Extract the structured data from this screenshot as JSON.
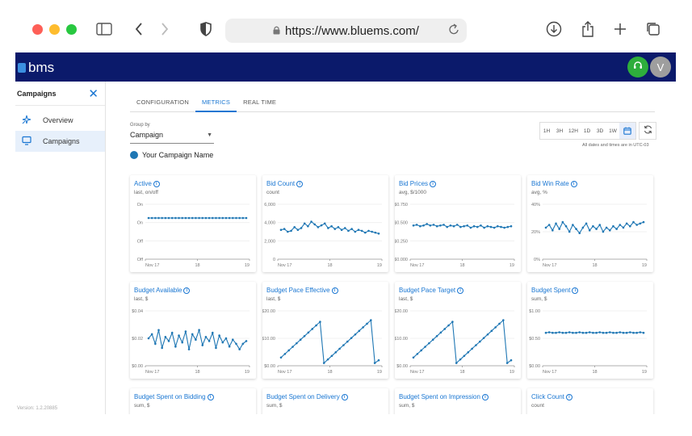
{
  "browser": {
    "url": "https://www.bluems.com/"
  },
  "app": {
    "logo_text": "bms",
    "avatar_initial": "V",
    "colors": {
      "header": "#0b1a6b",
      "accent": "#1976d2",
      "series": "#1f77b4",
      "help": "#2eae3c"
    }
  },
  "sidebar": {
    "title": "Campaigns",
    "items": [
      {
        "label": "Overview",
        "icon": "sparkle-icon"
      },
      {
        "label": "Campaigns",
        "icon": "monitor-icon",
        "active": true
      }
    ],
    "version": "Version: 1.2.20885"
  },
  "tabs": [
    {
      "label": "CONFIGURATION"
    },
    {
      "label": "METRICS",
      "active": true
    },
    {
      "label": "REAL TIME"
    }
  ],
  "groupby": {
    "label": "Group by",
    "value": "Campaign"
  },
  "legend": {
    "label": "Your Campaign Name"
  },
  "ranges": [
    "1H",
    "3H",
    "12H",
    "1D",
    "3D",
    "1W"
  ],
  "timezone_note": "All dates and times are in UTC-03",
  "chart_data": [
    {
      "id": "active",
      "title": "Active",
      "subtitle": "last, on/off",
      "type": "line",
      "x_ticks": [
        "Nov 17",
        "18",
        "19"
      ],
      "y_ticks": [
        "On",
        "On",
        "Off",
        "Off"
      ],
      "series": [
        {
          "values": [
            1,
            1,
            1,
            1,
            1,
            1,
            1,
            1,
            1,
            1,
            1,
            1,
            1,
            1,
            1,
            1,
            1,
            1,
            1,
            1,
            1,
            1,
            1,
            1,
            1,
            1,
            1,
            1,
            1,
            1
          ]
        }
      ],
      "ylim": [
        -0.5,
        1.5
      ]
    },
    {
      "id": "bid_count",
      "title": "Bid Count",
      "subtitle": "count",
      "type": "line",
      "x_ticks": [
        "Nov 17",
        "18",
        "19"
      ],
      "y_ticks": [
        "6,000",
        "4,000",
        "2,000",
        "0"
      ],
      "series": [
        {
          "values": [
            3200,
            3300,
            3000,
            3100,
            3500,
            3200,
            3400,
            3900,
            3600,
            4100,
            3800,
            3500,
            3700,
            3900,
            3400,
            3600,
            3300,
            3500,
            3200,
            3400,
            3100,
            3300,
            3000,
            3200,
            3100,
            2900,
            3100,
            3000,
            2900,
            2800
          ]
        }
      ],
      "ylim": [
        0,
        6000
      ]
    },
    {
      "id": "bid_prices",
      "title": "Bid Prices",
      "subtitle": "avg, $/1000",
      "type": "line",
      "x_ticks": [
        "Nov 17",
        "18",
        "19"
      ],
      "y_ticks": [
        "$0.750",
        "$0.500",
        "$0.250",
        "$0.000"
      ],
      "series": [
        {
          "values": [
            0.46,
            0.47,
            0.45,
            0.46,
            0.48,
            0.46,
            0.47,
            0.45,
            0.46,
            0.47,
            0.44,
            0.46,
            0.45,
            0.47,
            0.44,
            0.45,
            0.46,
            0.43,
            0.45,
            0.44,
            0.46,
            0.43,
            0.45,
            0.44,
            0.43,
            0.45,
            0.44,
            0.43,
            0.44,
            0.45
          ]
        }
      ],
      "ylim": [
        0,
        0.75
      ]
    },
    {
      "id": "bid_win_rate",
      "title": "Bid Win Rate",
      "subtitle": "avg, %",
      "type": "line",
      "x_ticks": [
        "Nov 17",
        "18",
        "19"
      ],
      "y_ticks": [
        "40%",
        "20%",
        "0%"
      ],
      "series": [
        {
          "values": [
            23,
            25,
            21,
            26,
            22,
            27,
            24,
            20,
            25,
            22,
            19,
            23,
            26,
            21,
            24,
            22,
            25,
            20,
            23,
            21,
            24,
            22,
            25,
            23,
            26,
            24,
            27,
            25,
            26,
            27
          ]
        }
      ],
      "ylim": [
        0,
        40
      ]
    },
    {
      "id": "budget_available",
      "title": "Budget Available",
      "subtitle": "last, $",
      "type": "line",
      "x_ticks": [
        "Nov 17",
        "18",
        "19"
      ],
      "y_ticks": [
        "$0.04",
        "$0.02",
        "$0.00"
      ],
      "series": [
        {
          "values": [
            0.02,
            0.023,
            0.016,
            0.026,
            0.013,
            0.021,
            0.018,
            0.024,
            0.014,
            0.022,
            0.017,
            0.025,
            0.012,
            0.023,
            0.019,
            0.026,
            0.015,
            0.021,
            0.018,
            0.024,
            0.013,
            0.022,
            0.017,
            0.02,
            0.014,
            0.019,
            0.016,
            0.012,
            0.016,
            0.018
          ]
        }
      ],
      "ylim": [
        0,
        0.04
      ]
    },
    {
      "id": "budget_pace_effective",
      "title": "Budget Pace Effective",
      "subtitle": "last, $",
      "type": "line",
      "x_ticks": [
        "Nov 17",
        "18",
        "19"
      ],
      "y_ticks": [
        "$20.00",
        "$10.00",
        "$0.00"
      ],
      "series": [
        {
          "values": [
            3,
            4.3,
            5.6,
            6.9,
            8.2,
            9.5,
            10.8,
            12.1,
            13.4,
            14.7,
            16,
            1,
            2.3,
            3.6,
            4.9,
            6.2,
            7.5,
            8.8,
            10.1,
            11.4,
            12.7,
            14,
            15.3,
            16.6,
            1,
            2
          ]
        }
      ],
      "ylim": [
        0,
        20
      ]
    },
    {
      "id": "budget_pace_target",
      "title": "Budget Pace Target",
      "subtitle": "last, $",
      "type": "line",
      "x_ticks": [
        "Nov 17",
        "18",
        "19"
      ],
      "y_ticks": [
        "$20.00",
        "$10.00",
        "$0.00"
      ],
      "series": [
        {
          "values": [
            3,
            4.3,
            5.6,
            6.9,
            8.2,
            9.5,
            10.8,
            12.1,
            13.4,
            14.7,
            16,
            1,
            2.3,
            3.6,
            4.9,
            6.2,
            7.5,
            8.8,
            10.1,
            11.4,
            12.7,
            14,
            15.3,
            16.6,
            1,
            2
          ]
        }
      ],
      "ylim": [
        0,
        20
      ]
    },
    {
      "id": "budget_spent",
      "title": "Budget Spent",
      "subtitle": "sum, $",
      "type": "line",
      "x_ticks": [
        "Nov 17",
        "18",
        "19"
      ],
      "y_ticks": [
        "$1.00",
        "$0.50",
        "$0.00"
      ],
      "series": [
        {
          "values": [
            0.6,
            0.61,
            0.6,
            0.6,
            0.61,
            0.6,
            0.6,
            0.61,
            0.6,
            0.6,
            0.61,
            0.6,
            0.6,
            0.61,
            0.6,
            0.6,
            0.61,
            0.6,
            0.6,
            0.61,
            0.6,
            0.6,
            0.61,
            0.6,
            0.6,
            0.61,
            0.6,
            0.6,
            0.61,
            0.6
          ]
        }
      ],
      "ylim": [
        0,
        1
      ]
    },
    {
      "id": "budget_spent_bidding",
      "title": "Budget Spent on Bidding",
      "subtitle": "sum, $",
      "type": "line",
      "series": []
    },
    {
      "id": "budget_spent_delivery",
      "title": "Budget Spent on Delivery",
      "subtitle": "sum, $",
      "type": "line",
      "series": []
    },
    {
      "id": "budget_spent_impression",
      "title": "Budget Spent on Impression",
      "subtitle": "sum, $",
      "type": "line",
      "series": []
    },
    {
      "id": "click_count",
      "title": "Click Count",
      "subtitle": "count",
      "type": "line",
      "series": []
    }
  ]
}
